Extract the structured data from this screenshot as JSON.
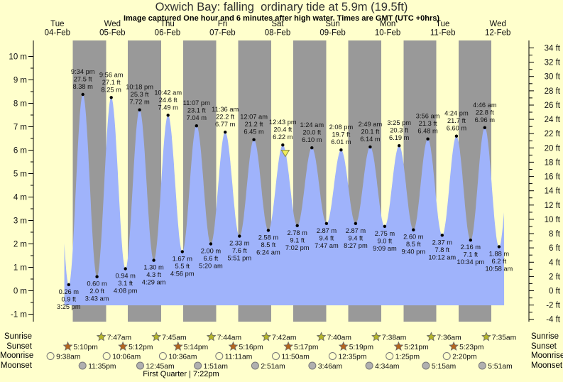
{
  "page": {
    "title": "Oxwich Bay: falling  ordinary tide at 5.9m (19.5ft)",
    "subtitle": "Image captured One hour and 6 minutes after high water. Times are GMT (UTC +0hrs)"
  },
  "colors": {
    "background": "#ffffcc",
    "day_band": "#ffffcc",
    "night_band": "#999999",
    "tide_fill": "#9fb3fb",
    "day_label": "#f24545",
    "text": "#111111",
    "marker": "#f0ee5a"
  },
  "chart_data": {
    "type": "area",
    "title": "Oxwich Bay: falling  ordinary tide at 5.9m (19.5ft)",
    "x_range": "04-Feb 00:00 to 13-Feb 00:00 GMT",
    "y_axis_left": {
      "unit": "m",
      "min": -1,
      "max": 10,
      "tick_step": 1
    },
    "y_axis_right": {
      "unit": "ft",
      "min": -4,
      "max": 34,
      "tick_step": 2
    },
    "x_axis": {
      "days": [
        {
          "label": "Tue",
          "date": "04-Feb",
          "day": 4
        },
        {
          "label": "Wed",
          "date": "05-Feb",
          "day": 5
        },
        {
          "label": "Thu",
          "date": "06-Feb",
          "day": 6
        },
        {
          "label": "Fri",
          "date": "07-Feb",
          "day": 7
        },
        {
          "label": "Sat",
          "date": "08-Feb",
          "day": 8
        },
        {
          "label": "Sun",
          "date": "09-Feb",
          "day": 9
        },
        {
          "label": "Mon",
          "date": "10-Feb",
          "day": 10
        },
        {
          "label": "Tue",
          "date": "11-Feb",
          "day": 11
        },
        {
          "label": "Wed",
          "date": "12-Feb",
          "day": 12
        }
      ]
    },
    "tide_events": [
      {
        "type": "low",
        "day": 4,
        "time": "3:25 pm",
        "height_m": 0.26,
        "height_ft": 0.9
      },
      {
        "type": "high",
        "day": 4,
        "time": "9:34 pm",
        "height_m": 8.38,
        "height_ft": 27.5
      },
      {
        "type": "low",
        "day": 5,
        "time": "3:43 am",
        "height_m": 0.6,
        "height_ft": 2.0
      },
      {
        "type": "high",
        "day": 5,
        "time": "9:56 am",
        "height_m": 8.25,
        "height_ft": 27.1
      },
      {
        "type": "low",
        "day": 5,
        "time": "4:08 pm",
        "height_m": 0.94,
        "height_ft": 3.1
      },
      {
        "type": "high",
        "day": 5,
        "time": "10:18 pm",
        "height_m": 7.72,
        "height_ft": 25.3
      },
      {
        "type": "low",
        "day": 6,
        "time": "4:29 am",
        "height_m": 1.3,
        "height_ft": 4.3
      },
      {
        "type": "high",
        "day": 6,
        "time": "10:42 am",
        "height_m": 7.49,
        "height_ft": 24.6
      },
      {
        "type": "low",
        "day": 6,
        "time": "4:56 pm",
        "height_m": 1.67,
        "height_ft": 5.5
      },
      {
        "type": "high",
        "day": 6,
        "time": "11:07 pm",
        "height_m": 7.04,
        "height_ft": 23.1
      },
      {
        "type": "low",
        "day": 7,
        "time": "5:20 am",
        "height_m": 2.0,
        "height_ft": 6.6
      },
      {
        "type": "high",
        "day": 7,
        "time": "11:36 am",
        "height_m": 6.77,
        "height_ft": 22.2
      },
      {
        "type": "low",
        "day": 7,
        "time": "5:51 pm",
        "height_m": 2.33,
        "height_ft": 7.6
      },
      {
        "type": "high",
        "day": 8,
        "time": "12:07 am",
        "height_m": 6.45,
        "height_ft": 21.2
      },
      {
        "type": "low",
        "day": 8,
        "time": "6:24 am",
        "height_m": 2.58,
        "height_ft": 8.5
      },
      {
        "type": "high",
        "day": 8,
        "time": "12:43 pm",
        "height_m": 6.22,
        "height_ft": 20.4
      },
      {
        "type": "low",
        "day": 8,
        "time": "7:02 pm",
        "height_m": 2.78,
        "height_ft": 9.1
      },
      {
        "type": "high",
        "day": 9,
        "time": "1:24 am",
        "height_m": 6.1,
        "height_ft": 20.0
      },
      {
        "type": "low",
        "day": 9,
        "time": "7:47 am",
        "height_m": 2.87,
        "height_ft": 9.4
      },
      {
        "type": "high",
        "day": 9,
        "time": "2:08 pm",
        "height_m": 6.01,
        "height_ft": 19.7
      },
      {
        "type": "low",
        "day": 9,
        "time": "8:27 pm",
        "height_m": 2.87,
        "height_ft": 9.4
      },
      {
        "type": "high",
        "day": 10,
        "time": "2:49 am",
        "height_m": 6.14,
        "height_ft": 20.1
      },
      {
        "type": "low",
        "day": 10,
        "time": "9:09 am",
        "height_m": 2.75,
        "height_ft": 9.0
      },
      {
        "type": "high",
        "day": 10,
        "time": "3:25 pm",
        "height_m": 6.19,
        "height_ft": 20.3
      },
      {
        "type": "low",
        "day": 10,
        "time": "9:40 pm",
        "height_m": 2.6,
        "height_ft": 8.5
      },
      {
        "type": "high",
        "day": 11,
        "time": "3:56 am",
        "height_m": 6.48,
        "height_ft": 21.3
      },
      {
        "type": "low",
        "day": 11,
        "time": "10:12 am",
        "height_m": 2.37,
        "height_ft": 7.8
      },
      {
        "type": "high",
        "day": 11,
        "time": "4:24 pm",
        "height_m": 6.6,
        "height_ft": 21.7
      },
      {
        "type": "low",
        "day": 11,
        "time": "10:34 pm",
        "height_m": 2.16,
        "height_ft": 7.1
      },
      {
        "type": "high",
        "day": 12,
        "time": "4:46 am",
        "height_m": 6.96,
        "height_ft": 22.8
      },
      {
        "type": "low",
        "day": 12,
        "time": "10:58 am",
        "height_m": 1.88,
        "height_ft": 6.2
      }
    ],
    "capture_marker": {
      "day": 8,
      "time": "1:49 pm",
      "height_m": 6.0
    }
  },
  "almanac": {
    "rows": [
      {
        "label": "Sunrise",
        "icon": "sunrise-star-icon",
        "icon_color": "#b5b529",
        "events": [
          {
            "day": 5,
            "time": "7:47am"
          },
          {
            "day": 6,
            "time": "7:45am"
          },
          {
            "day": 7,
            "time": "7:44am"
          },
          {
            "day": 8,
            "time": "7:42am"
          },
          {
            "day": 9,
            "time": "7:40am"
          },
          {
            "day": 10,
            "time": "7:38am"
          },
          {
            "day": 11,
            "time": "7:36am"
          },
          {
            "day": 12,
            "time": "7:35am"
          }
        ]
      },
      {
        "label": "Sunset",
        "icon": "sunset-star-icon",
        "icon_color": "#b5651d",
        "events": [
          {
            "day": 4,
            "time": "5:10pm"
          },
          {
            "day": 5,
            "time": "5:12pm"
          },
          {
            "day": 6,
            "time": "5:14pm"
          },
          {
            "day": 7,
            "time": "5:16pm"
          },
          {
            "day": 8,
            "time": "5:17pm"
          },
          {
            "day": 9,
            "time": "5:19pm"
          },
          {
            "day": 10,
            "time": "5:21pm"
          },
          {
            "day": 11,
            "time": "5:23pm"
          }
        ]
      },
      {
        "label": "Moonrise",
        "icon": "moonrise-circle-icon",
        "icon_color": "#ffffcc",
        "events": [
          {
            "day": 4,
            "time": "9:38am"
          },
          {
            "day": 5,
            "time": "10:06am"
          },
          {
            "day": 6,
            "time": "10:36am"
          },
          {
            "day": 7,
            "time": "11:11am"
          },
          {
            "day": 8,
            "time": "11:50am"
          },
          {
            "day": 9,
            "time": "12:35pm"
          },
          {
            "day": 10,
            "time": "1:25pm"
          },
          {
            "day": 11,
            "time": "2:20pm"
          }
        ]
      },
      {
        "label": "Moonset",
        "icon": "moonset-circle-icon",
        "icon_color": "#b0b0b0",
        "events": [
          {
            "day": 4,
            "time": "11:35pm"
          },
          {
            "day": 6,
            "time": "12:45am"
          },
          {
            "day": 7,
            "time": "1:51am"
          },
          {
            "day": 8,
            "time": "2:51am"
          },
          {
            "day": 9,
            "time": "3:46am"
          },
          {
            "day": 10,
            "time": "4:34am"
          },
          {
            "day": 11,
            "time": "5:15am"
          },
          {
            "day": 12,
            "time": "5:51am"
          }
        ]
      }
    ],
    "moon_phase": "First Quarter | 7:22pm"
  }
}
